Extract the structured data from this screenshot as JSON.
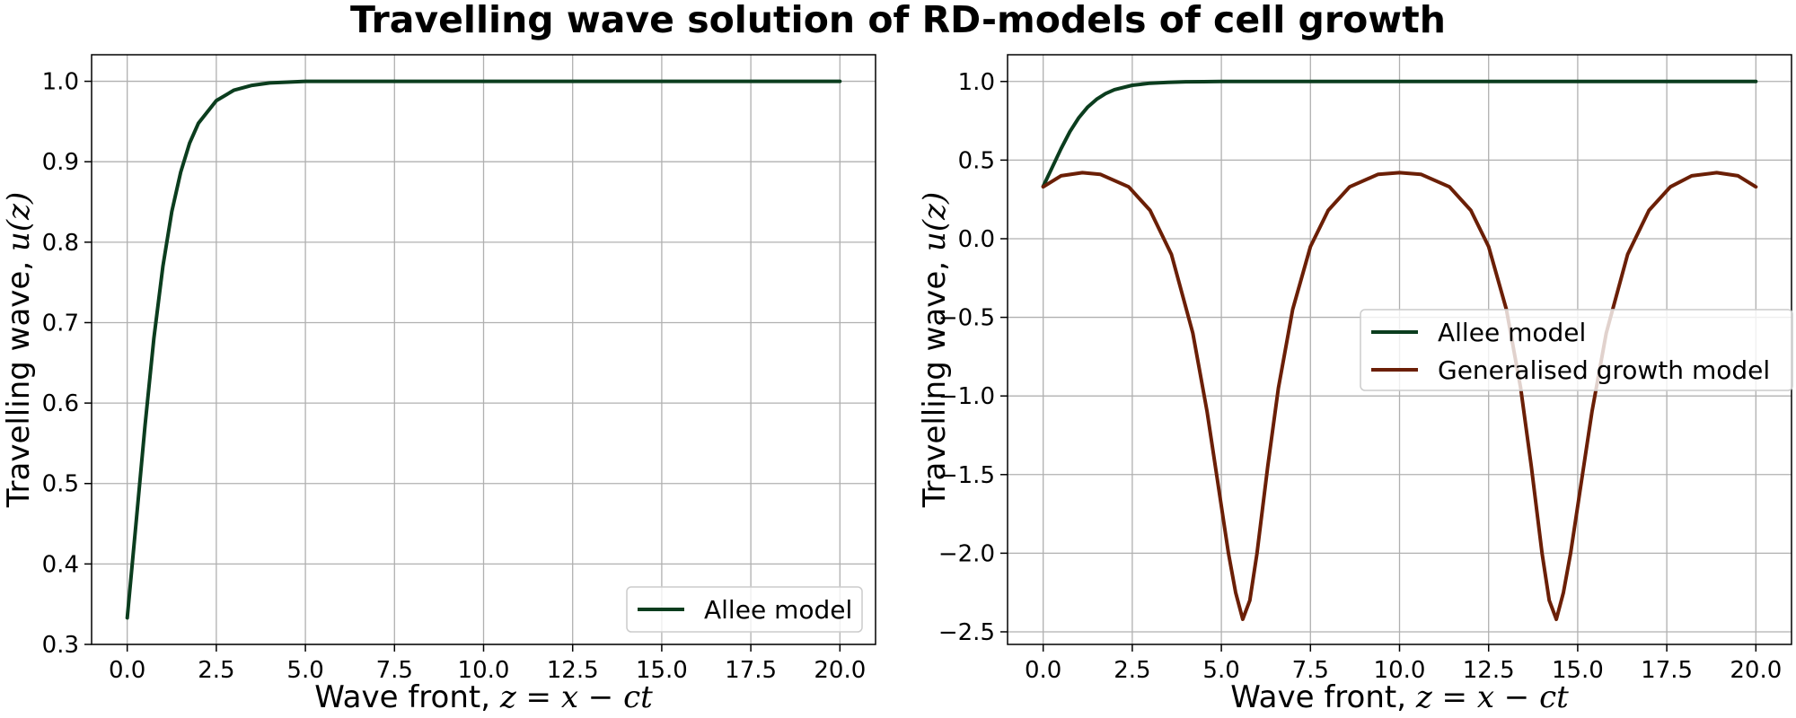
{
  "title": "Travelling wave solution of RD-models of cell growth",
  "colors": {
    "allee": "#0b3d1e",
    "generalised": "#6b1f06",
    "grid": "#b0b0b0"
  },
  "chart_data": [
    {
      "type": "line",
      "xlabel_text": "Wave front, ",
      "xlabel_math": "z = x − ct",
      "ylabel_text": "Travelling wave, ",
      "ylabel_math": "u(z)",
      "xlim": [
        -1.0,
        21.0
      ],
      "ylim": [
        0.3,
        1.033
      ],
      "xticks": [
        0.0,
        2.5,
        5.0,
        7.5,
        10.0,
        12.5,
        15.0,
        17.5,
        20.0
      ],
      "xtick_labels": [
        "0.0",
        "2.5",
        "5.0",
        "7.5",
        "10.0",
        "12.5",
        "15.0",
        "17.5",
        "20.0"
      ],
      "yticks": [
        0.3,
        0.4,
        0.5,
        0.6,
        0.7,
        0.8,
        0.9,
        1.0
      ],
      "ytick_labels": [
        "0.3",
        "0.4",
        "0.5",
        "0.6",
        "0.7",
        "0.8",
        "0.9",
        "1.0"
      ],
      "grid": true,
      "legend_position": "lower-right",
      "series": [
        {
          "name": "Allee model",
          "color_key": "allee",
          "x": [
            0,
            0.25,
            0.5,
            0.75,
            1.0,
            1.25,
            1.5,
            1.75,
            2.0,
            2.5,
            3.0,
            3.5,
            4.0,
            4.5,
            5.0,
            6.0,
            8.0,
            10.0,
            15.0,
            20.0
          ],
          "y": [
            0.333,
            0.452,
            0.572,
            0.681,
            0.77,
            0.838,
            0.887,
            0.923,
            0.948,
            0.976,
            0.989,
            0.995,
            0.998,
            0.999,
            1.0,
            1.0,
            1.0,
            1.0,
            1.0,
            1.0
          ]
        }
      ]
    },
    {
      "type": "line",
      "xlabel_text": "Wave front, ",
      "xlabel_math": "z = x − ct",
      "ylabel_text": "Travelling wave, ",
      "ylabel_math": "u(z)",
      "xlim": [
        -1.0,
        21.0
      ],
      "ylim": [
        -2.58,
        1.17
      ],
      "xticks": [
        0.0,
        2.5,
        5.0,
        7.5,
        10.0,
        12.5,
        15.0,
        17.5,
        20.0
      ],
      "xtick_labels": [
        "0.0",
        "2.5",
        "5.0",
        "7.5",
        "10.0",
        "12.5",
        "15.0",
        "17.5",
        "20.0"
      ],
      "yticks": [
        -2.5,
        -2.0,
        -1.5,
        -1.0,
        -0.5,
        0.0,
        0.5,
        1.0
      ],
      "ytick_labels": [
        "−2.5",
        "−2.0",
        "−1.5",
        "−1.0",
        "−0.5",
        "0.0",
        "0.5",
        "1.0"
      ],
      "grid": true,
      "legend_position": "center-right",
      "series": [
        {
          "name": "Allee model",
          "color_key": "allee",
          "x": [
            0,
            0.25,
            0.5,
            0.75,
            1.0,
            1.25,
            1.5,
            1.75,
            2.0,
            2.5,
            3.0,
            3.5,
            4.0,
            4.5,
            5.0,
            6.0,
            8.0,
            10.0,
            15.0,
            20.0
          ],
          "y": [
            0.333,
            0.452,
            0.572,
            0.681,
            0.77,
            0.838,
            0.887,
            0.923,
            0.948,
            0.976,
            0.989,
            0.995,
            0.998,
            0.999,
            1.0,
            1.0,
            1.0,
            1.0,
            1.0,
            1.0
          ]
        },
        {
          "name": "Generalised growth model",
          "color_key": "generalised",
          "x": [
            0.0,
            0.5,
            1.1,
            1.6,
            2.4,
            3.0,
            3.6,
            4.2,
            4.6,
            4.9,
            5.2,
            5.4,
            5.6,
            5.8,
            6.0,
            6.3,
            6.6,
            7.0,
            7.5,
            8.0,
            8.6,
            9.4,
            10.0,
            10.6,
            11.4,
            12.0,
            12.5,
            13.0,
            13.4,
            13.7,
            14.0,
            14.2,
            14.4,
            14.6,
            14.8,
            15.1,
            15.4,
            15.8,
            16.4,
            17.0,
            17.6,
            18.2,
            18.9,
            19.5,
            20.0
          ],
          "y": [
            0.33,
            0.4,
            0.42,
            0.41,
            0.33,
            0.18,
            -0.1,
            -0.6,
            -1.1,
            -1.55,
            -2.0,
            -2.25,
            -2.42,
            -2.3,
            -2.0,
            -1.45,
            -0.95,
            -0.45,
            -0.05,
            0.18,
            0.33,
            0.41,
            0.42,
            0.41,
            0.33,
            0.18,
            -0.05,
            -0.45,
            -0.95,
            -1.45,
            -2.0,
            -2.3,
            -2.42,
            -2.25,
            -2.0,
            -1.55,
            -1.1,
            -0.6,
            -0.1,
            0.18,
            0.33,
            0.4,
            0.42,
            0.4,
            0.33
          ]
        }
      ]
    }
  ]
}
